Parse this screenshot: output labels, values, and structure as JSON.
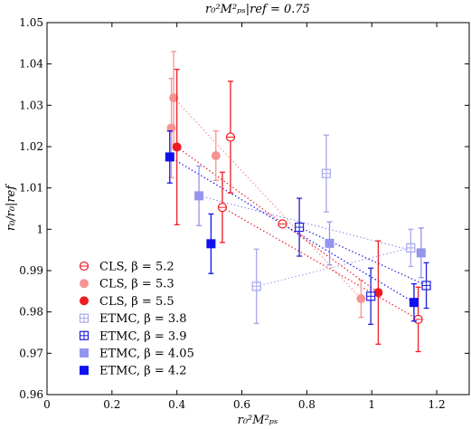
{
  "chart_data": {
    "type": "scatter",
    "title": "r₀²M²ₚₛ|ref = 0.75",
    "xlabel": "r₀²M²ₚₛ",
    "ylabel": "r₀/r₀|ref",
    "xlim": [
      0,
      1.3
    ],
    "ylim": [
      0.96,
      1.05
    ],
    "xticks": [
      "0",
      "0.2",
      "0.4",
      "0.6",
      "0.8",
      "1",
      "1.2"
    ],
    "yticks": [
      "0.96",
      "0.97",
      "0.98",
      "0.99",
      "1",
      "1.01",
      "1.02",
      "1.03",
      "1.04",
      "1.05"
    ],
    "xtick_values": [
      0,
      0.2,
      0.4,
      0.6,
      0.8,
      1.0,
      1.2
    ],
    "ytick_values": [
      0.96,
      0.97,
      0.98,
      0.99,
      1.0,
      1.01,
      1.02,
      1.03,
      1.04,
      1.05
    ],
    "legend_position": "bottom-left",
    "reference_point": {
      "x": 0.725,
      "y": 1.0013,
      "err": 0.0005
    },
    "series": [
      {
        "name": "CLS, β = 5.2",
        "color": "#ee1c25",
        "marker": "circle-open-cross",
        "points": [
          {
            "x": 0.54,
            "y": 1.0053,
            "err": 0.0085
          },
          {
            "x": 0.565,
            "y": 1.0223,
            "err": 0.0135
          },
          {
            "x": 1.143,
            "y": 0.9782,
            "err": 0.0078
          }
        ],
        "fit": [
          [
            0.54,
            1.0053
          ],
          [
            1.143,
            0.9782
          ]
        ]
      },
      {
        "name": "CLS, β = 5.3",
        "color": "#f59393",
        "marker": "circle-filled",
        "points": [
          {
            "x": 0.383,
            "y": 1.0245,
            "err": 0.012
          },
          {
            "x": 0.39,
            "y": 1.0318,
            "err": 0.0112
          },
          {
            "x": 0.52,
            "y": 1.0178,
            "err": 0.006
          },
          {
            "x": 0.967,
            "y": 0.9832,
            "err": 0.0045
          }
        ],
        "fit": [
          [
            0.39,
            1.0318
          ],
          [
            0.967,
            0.9832
          ]
        ]
      },
      {
        "name": "CLS, β = 5.5",
        "color": "#ee1c25",
        "marker": "circle-filled",
        "points": [
          {
            "x": 0.4,
            "y": 1.0199,
            "err": 0.0188
          },
          {
            "x": 1.02,
            "y": 0.9847,
            "err": 0.0125
          }
        ],
        "fit": [
          [
            0.4,
            1.0199
          ],
          [
            1.02,
            0.9847
          ]
        ]
      },
      {
        "name": "ETMC, β = 3.8",
        "color": "#a7a7ee",
        "marker": "square-open-cross",
        "points": [
          {
            "x": 0.645,
            "y": 0.9862,
            "err": 0.009
          },
          {
            "x": 0.86,
            "y": 1.0135,
            "err": 0.0093
          },
          {
            "x": 1.12,
            "y": 0.9955,
            "err": 0.0045
          }
        ],
        "fit": [
          [
            0.645,
            0.9862
          ],
          [
            1.12,
            0.9955
          ]
        ]
      },
      {
        "name": "ETMC, β = 3.9",
        "color": "#1f1fd6",
        "marker": "square-open-cross",
        "points": [
          {
            "x": 0.777,
            "y": 1.0005,
            "err": 0.007
          },
          {
            "x": 0.997,
            "y": 0.9838,
            "err": 0.0068
          },
          {
            "x": 1.168,
            "y": 0.9864,
            "err": 0.0055
          }
        ],
        "fit": [
          [
            0.777,
            1.0005
          ],
          [
            1.168,
            0.9864
          ]
        ]
      },
      {
        "name": "ETMC, β = 4.05",
        "color": "#9595ee",
        "marker": "square-filled",
        "points": [
          {
            "x": 0.468,
            "y": 1.0081,
            "err": 0.0072
          },
          {
            "x": 0.87,
            "y": 0.9966,
            "err": 0.0052
          },
          {
            "x": 1.152,
            "y": 0.9943,
            "err": 0.006
          }
        ],
        "fit": [
          [
            0.468,
            1.0081
          ],
          [
            1.152,
            0.9943
          ]
        ]
      },
      {
        "name": "ETMC, β = 4.2",
        "color": "#1010ee",
        "marker": "square-filled",
        "points": [
          {
            "x": 0.378,
            "y": 1.0175,
            "err": 0.0063
          },
          {
            "x": 0.505,
            "y": 0.9965,
            "err": 0.0072
          },
          {
            "x": 1.13,
            "y": 0.9823,
            "err": 0.0045
          }
        ],
        "fit": [
          [
            0.378,
            1.0175
          ],
          [
            1.13,
            0.9823
          ]
        ]
      }
    ]
  }
}
